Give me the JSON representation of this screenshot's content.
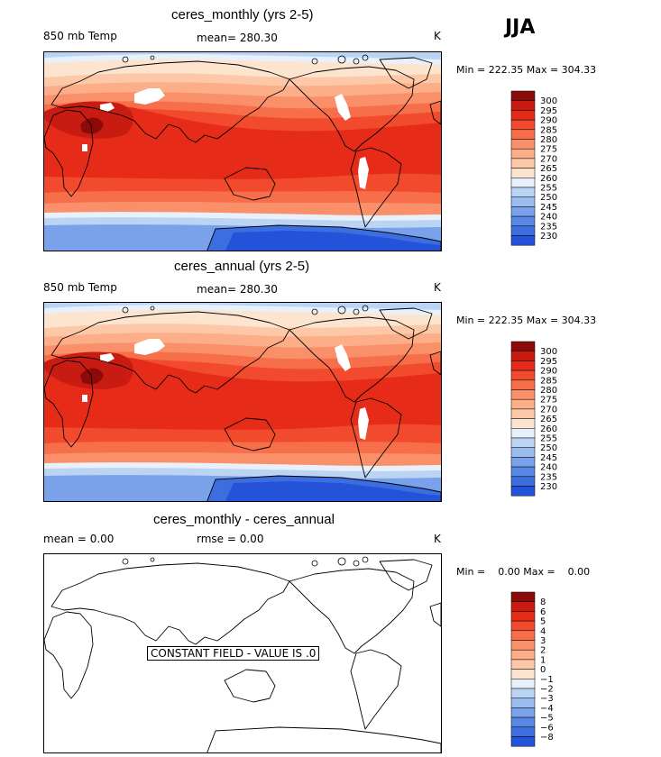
{
  "season": "JJA",
  "colors": {
    "warm": [
      "#fde4cf",
      "#fcc8a8",
      "#fbae88",
      "#f9906a",
      "#f66e4a",
      "#f24a2c",
      "#e62b19",
      "#c81b12",
      "#8c0b08"
    ],
    "cool": [
      "#e8f1fb",
      "#bcd4f4",
      "#9bbcef",
      "#7aa2ea",
      "#5887e4",
      "#3c6ee0",
      "#2452d8",
      "#0f33c0",
      "#061a8a"
    ]
  },
  "panels": [
    {
      "title": "ceres_monthly (yrs 2-5)",
      "left_label": "850 mb Temp",
      "center_label": "mean=  280.30",
      "units": "K",
      "minmax": "Min = 222.35 Max = 304.33",
      "colorbar_labels": [
        "300",
        "295",
        "290",
        "285",
        "280",
        "275",
        "270",
        "265",
        "260",
        "255",
        "250",
        "245",
        "240",
        "235",
        "230"
      ],
      "constant_field": false
    },
    {
      "title": "ceres_annual (yrs 2-5)",
      "left_label": "850 mb Temp",
      "center_label": "mean=  280.30",
      "units": "K",
      "minmax": "Min = 222.35 Max = 304.33",
      "colorbar_labels": [
        "300",
        "295",
        "290",
        "285",
        "280",
        "275",
        "270",
        "265",
        "260",
        "255",
        "250",
        "245",
        "240",
        "235",
        "230"
      ],
      "constant_field": false
    },
    {
      "title": "ceres_monthly - ceres_annual",
      "left_label": "mean =     0.00",
      "center_label": "rmse =     0.00",
      "units": "K",
      "minmax": "Min =    0.00 Max =    0.00",
      "colorbar_labels": [
        "8",
        "6",
        "5",
        "4",
        "3",
        "2",
        "1",
        "0",
        "−1",
        "−2",
        "−3",
        "−4",
        "−5",
        "−6",
        "−8"
      ],
      "constant_field": true,
      "constant_label": "CONSTANT FIELD - VALUE IS .0"
    }
  ]
}
